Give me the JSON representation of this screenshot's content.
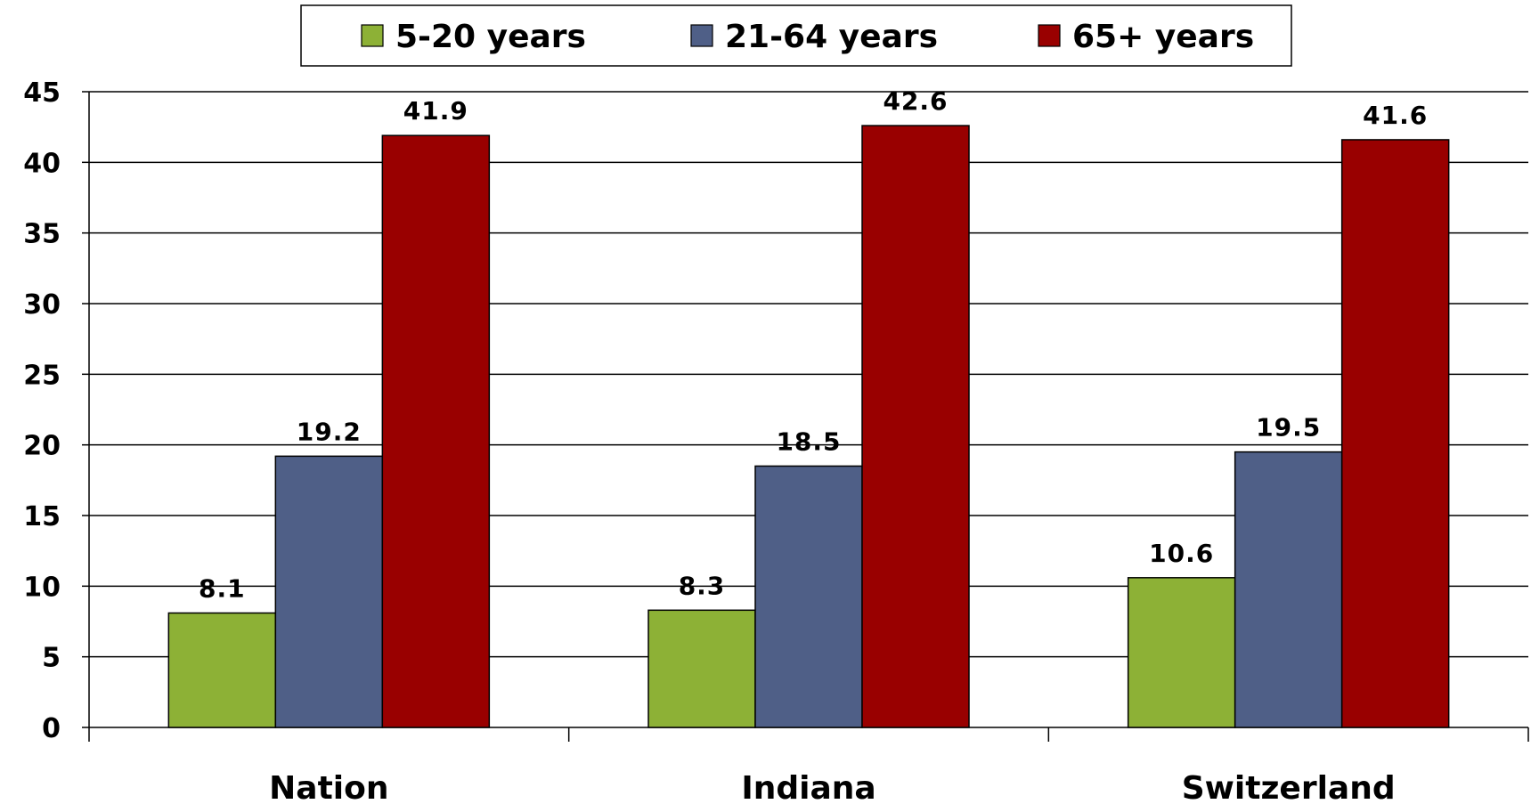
{
  "chart_data": {
    "type": "bar",
    "title": "",
    "xlabel": "",
    "ylabel": "",
    "ylim": [
      0,
      45
    ],
    "yticks": [
      0,
      5,
      10,
      15,
      20,
      25,
      30,
      35,
      40,
      45
    ],
    "grid": true,
    "legend_position": "top-center",
    "categories": [
      "Nation",
      "Indiana",
      "Switzerland"
    ],
    "series": [
      {
        "name": "5-20 years",
        "color": "#8db136",
        "values": [
          8.1,
          8.3,
          10.6
        ],
        "labels": [
          "8.1",
          "8.3",
          "10.6"
        ]
      },
      {
        "name": "21-64 years",
        "color": "#4f5f87",
        "values": [
          19.2,
          18.5,
          19.5
        ],
        "labels": [
          "19.2",
          "18.5",
          "19.5"
        ]
      },
      {
        "name": "65+ years",
        "color": "#990000",
        "values": [
          41.9,
          42.6,
          41.6
        ],
        "labels": [
          "41.9",
          "42.6",
          "41.6"
        ]
      }
    ]
  }
}
